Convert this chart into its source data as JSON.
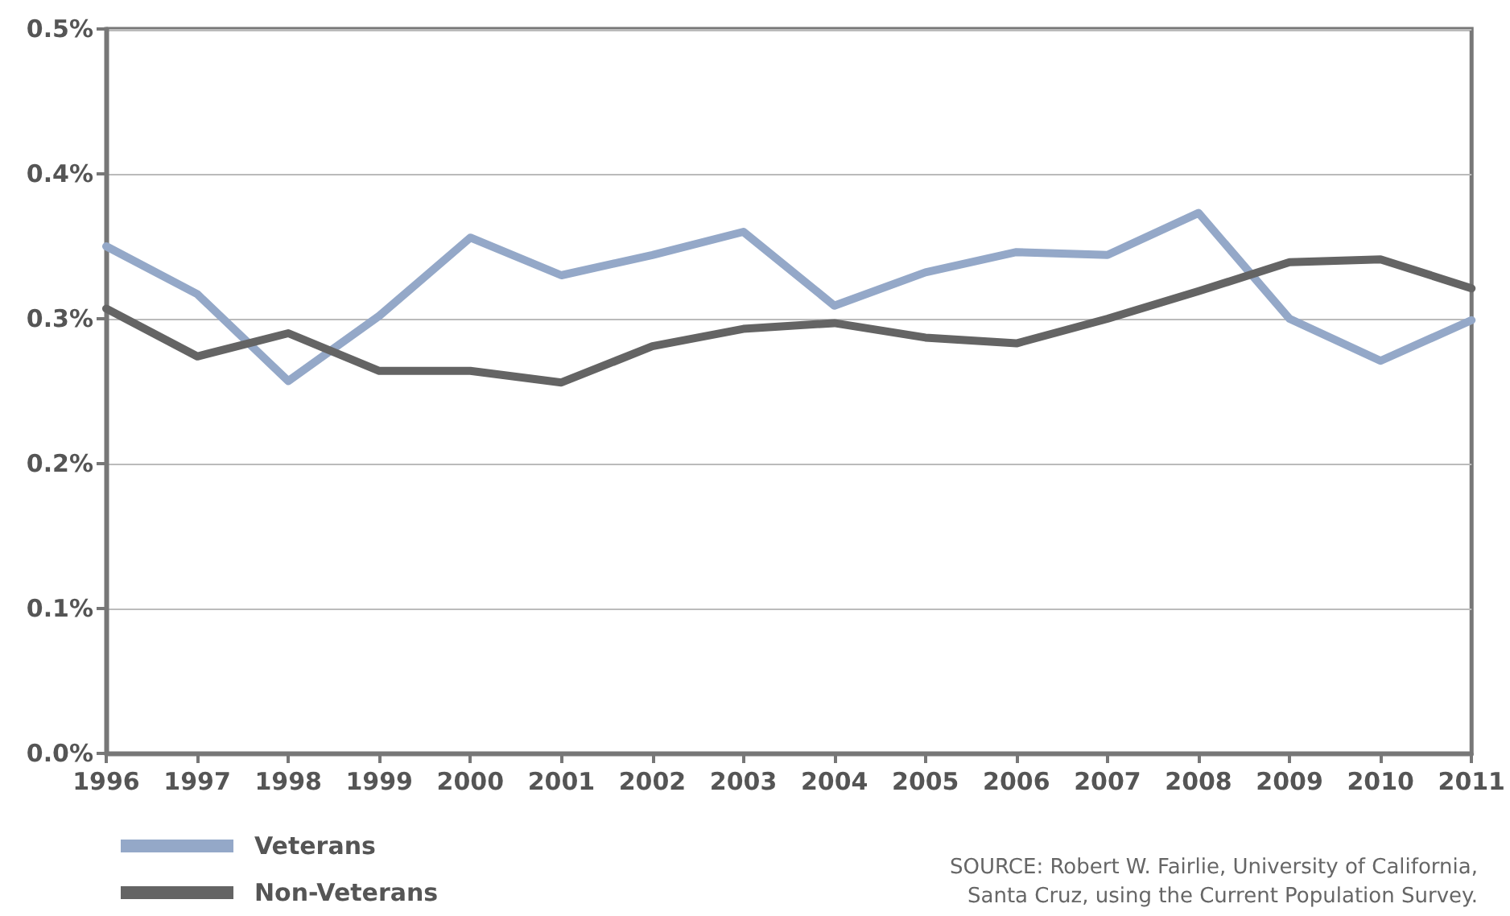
{
  "chart_data": {
    "type": "line",
    "categories": [
      "1996",
      "1997",
      "1998",
      "1999",
      "2000",
      "2001",
      "2002",
      "2003",
      "2004",
      "2005",
      "2006",
      "2007",
      "2008",
      "2009",
      "2010",
      "2011"
    ],
    "series": [
      {
        "name": "Veterans",
        "color": "#94a8c8",
        "values": [
          0.35,
          0.317,
          0.257,
          0.302,
          0.356,
          0.33,
          0.344,
          0.36,
          0.309,
          0.332,
          0.346,
          0.344,
          0.373,
          0.3,
          0.271,
          0.299
        ]
      },
      {
        "name": "Non-Veterans",
        "color": "#646464",
        "values": [
          0.307,
          0.274,
          0.29,
          0.264,
          0.264,
          0.256,
          0.281,
          0.293,
          0.297,
          0.287,
          0.283,
          0.3,
          0.319,
          0.339,
          0.341,
          0.321
        ]
      }
    ],
    "ylim": [
      0,
      0.5
    ],
    "yticks": [
      {
        "value": 0,
        "label": "0.0%"
      },
      {
        "value": 0.1,
        "label": "0.1%"
      },
      {
        "value": 0.2,
        "label": "0.2%"
      },
      {
        "value": 0.3,
        "label": "0.3%"
      },
      {
        "value": 0.4,
        "label": "0.4%"
      },
      {
        "value": 0.5,
        "label": "0.5%"
      }
    ],
    "grid": "y",
    "legend": "bottom left",
    "marker": "none",
    "line_style": "solid",
    "annotations": [
      "SOURCE: Robert W. Fairlie, University of California,\nSanta Cruz, using the Current Population Survey."
    ]
  }
}
